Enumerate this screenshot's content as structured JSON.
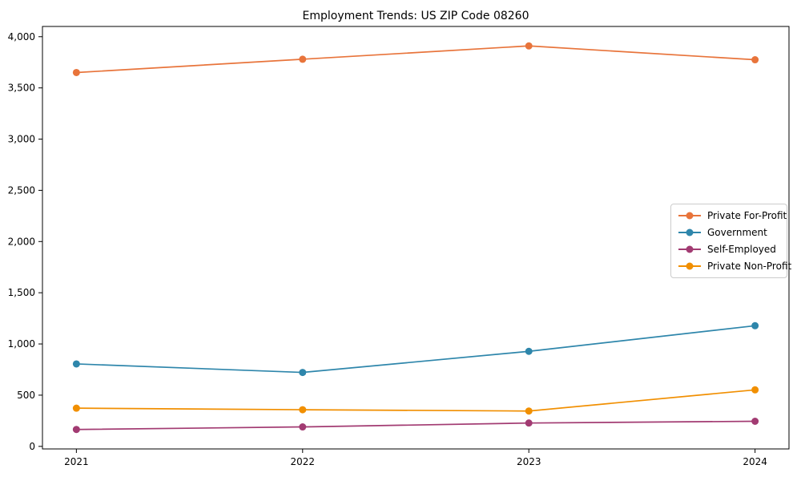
{
  "chart_data": {
    "type": "line",
    "title": "Employment Trends: US ZIP Code 08260",
    "xlabel": "",
    "ylabel": "",
    "x": [
      2021,
      2022,
      2023,
      2024
    ],
    "x_tick_labels": [
      "2021",
      "2022",
      "2023",
      "2024"
    ],
    "y_ticks": [
      0,
      500,
      1000,
      1500,
      2000,
      2500,
      3000,
      3500,
      4000
    ],
    "y_tick_labels": [
      "0",
      "500",
      "1,000",
      "1,500",
      "2,000",
      "2,500",
      "3,000",
      "3,500",
      "4,000"
    ],
    "xlim": [
      2020.85,
      2024.15
    ],
    "ylim": [
      -25,
      4100
    ],
    "grid": false,
    "legend_position": "center right",
    "series": [
      {
        "name": "Private For-Profit",
        "color": "#E8743B",
        "values": [
          3650,
          3780,
          3910,
          3775
        ]
      },
      {
        "name": "Government",
        "color": "#2E86AB",
        "values": [
          805,
          722,
          928,
          1178
        ]
      },
      {
        "name": "Self-Employed",
        "color": "#A23B72",
        "values": [
          165,
          190,
          228,
          245
        ]
      },
      {
        "name": "Private Non-Profit",
        "color": "#F18F01",
        "values": [
          373,
          358,
          345,
          552
        ]
      }
    ]
  }
}
